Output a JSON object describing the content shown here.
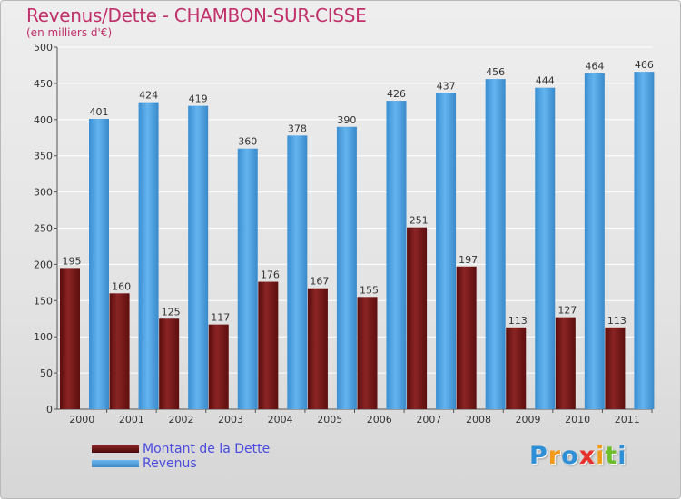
{
  "title": "Revenus/Dette - CHAMBON-SUR-CISSE",
  "subtitle": "(en milliers d'€)",
  "logo": "Proxiti",
  "logo_letters": [
    {
      "ch": "P",
      "color": "#2f8fd6"
    },
    {
      "ch": "r",
      "color": "#f29a1a"
    },
    {
      "ch": "o",
      "color": "#2f8fd6"
    },
    {
      "ch": "x",
      "color": "#e8312a"
    },
    {
      "ch": "i",
      "color": "#f29a1a"
    },
    {
      "ch": "t",
      "color": "#6cbf2a"
    },
    {
      "ch": "i",
      "color": "#2f8fd6"
    }
  ],
  "chart_data": {
    "type": "bar",
    "categories": [
      "2000",
      "2001",
      "2002",
      "2003",
      "2004",
      "2005",
      "2006",
      "2007",
      "2008",
      "2009",
      "2010",
      "2011"
    ],
    "series": [
      {
        "name": "Montant de la Dette",
        "color": "#7a1a1a",
        "values": [
          195,
          160,
          125,
          117,
          176,
          167,
          155,
          251,
          197,
          113,
          127,
          113
        ]
      },
      {
        "name": "Revenus",
        "color": "#4da3e6",
        "values": [
          401,
          424,
          419,
          360,
          378,
          390,
          426,
          437,
          456,
          444,
          464,
          466
        ]
      }
    ],
    "yticks": [
      0,
      50,
      100,
      150,
      200,
      250,
      300,
      350,
      400,
      450,
      500
    ],
    "ylim": [
      0,
      500
    ],
    "grid": true,
    "legend": "bottom-left"
  }
}
